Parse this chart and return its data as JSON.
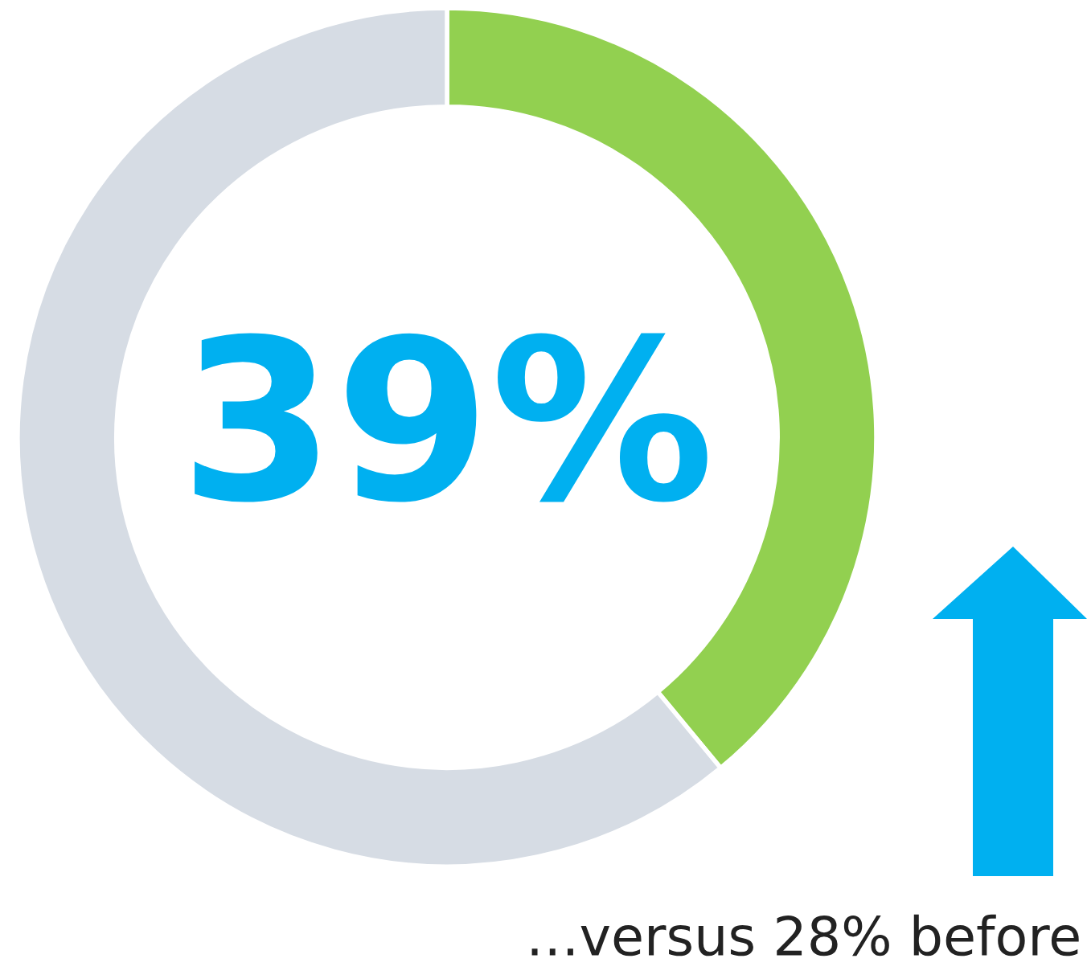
{
  "chart_data": {
    "type": "donut",
    "categories": [
      null,
      null
    ],
    "values": [
      39,
      61
    ],
    "colors": [
      "#92d050",
      "#d6dce4"
    ],
    "value_labels": [
      "39%",
      null
    ],
    "annotations": [
      "…versus 28% before"
    ]
  }
}
